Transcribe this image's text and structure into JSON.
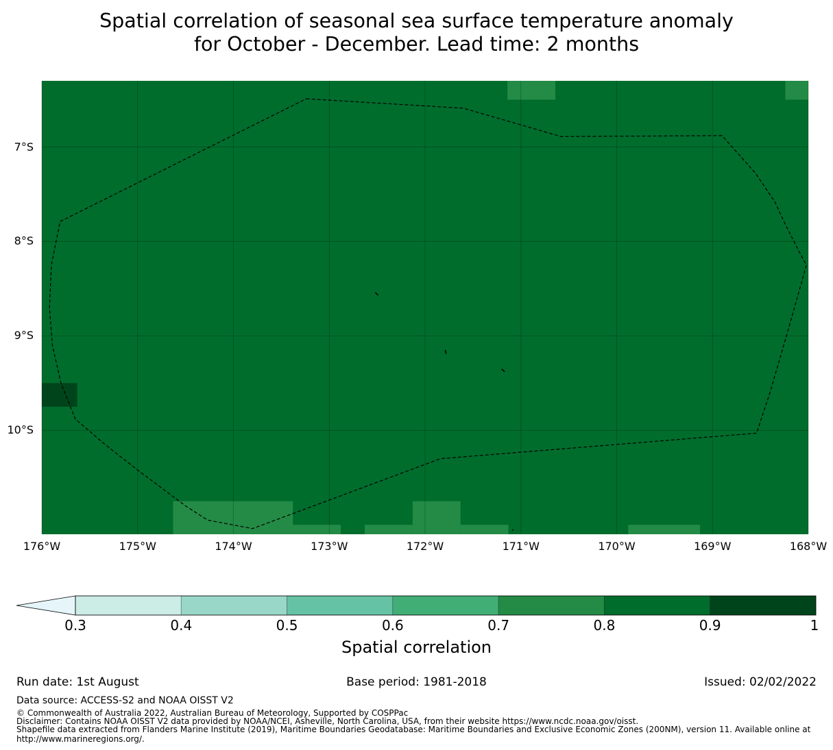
{
  "title": {
    "line1": "Spatial correlation of seasonal sea surface temperature anomaly",
    "line2": "for October - December. Lead time: 2 months"
  },
  "map": {
    "lon_range": [
      -176,
      -168
    ],
    "lat_range": [
      -11.1,
      -6.3
    ],
    "background_color": "#006d2c",
    "gridlines": true,
    "lat_ticks": [
      {
        "value": -7,
        "label": "7°S"
      },
      {
        "value": -8,
        "label": "8°S"
      },
      {
        "value": -9,
        "label": "9°S"
      },
      {
        "value": -10,
        "label": "10°S"
      }
    ],
    "lon_ticks": [
      {
        "value": -176,
        "label": "176°W"
      },
      {
        "value": -175,
        "label": "175°W"
      },
      {
        "value": -174,
        "label": "174°W"
      },
      {
        "value": -173,
        "label": "173°W"
      },
      {
        "value": -172,
        "label": "172°W"
      },
      {
        "value": -171,
        "label": "171°W"
      },
      {
        "value": -170,
        "label": "170°W"
      },
      {
        "value": -169,
        "label": "169°W"
      },
      {
        "value": -168,
        "label": "168°W"
      }
    ],
    "cells": [
      {
        "lon": [
          -171.14,
          -170.64
        ],
        "lat": [
          -6.5,
          -6.3
        ],
        "color": "#238b45",
        "category": "0.7-0.8"
      },
      {
        "lon": [
          -168.24,
          -168.0
        ],
        "lat": [
          -6.5,
          -6.3
        ],
        "color": "#238b45",
        "category": "0.7-0.8"
      },
      {
        "lon": [
          -176.0,
          -175.63
        ],
        "lat": [
          -9.75,
          -9.5
        ],
        "color": "#00441b",
        "category": "0.9-1"
      },
      {
        "lon": [
          -174.63,
          -173.38
        ],
        "lat": [
          -11.1,
          -10.75
        ],
        "color": "#238b45",
        "category": "0.7-0.8"
      },
      {
        "lon": [
          -173.38,
          -172.88
        ],
        "lat": [
          -11.1,
          -11.0
        ],
        "color": "#238b45",
        "category": "0.7-0.8"
      },
      {
        "lon": [
          -172.63,
          -172.13
        ],
        "lat": [
          -11.1,
          -11.0
        ],
        "color": "#238b45",
        "category": "0.7-0.8"
      },
      {
        "lon": [
          -172.13,
          -171.63
        ],
        "lat": [
          -11.1,
          -10.75
        ],
        "color": "#238b45",
        "category": "0.7-0.8"
      },
      {
        "lon": [
          -171.63,
          -171.13
        ],
        "lat": [
          -11.1,
          -11.0
        ],
        "color": "#238b45",
        "category": "0.7-0.8"
      },
      {
        "lon": [
          -169.88,
          -169.13
        ],
        "lat": [
          -11.1,
          -11.0
        ],
        "color": "#238b45",
        "category": "0.7-0.8"
      }
    ],
    "eez_boundary": [
      [
        -173.24,
        -6.49
      ],
      [
        -171.6,
        -6.59
      ],
      [
        -170.58,
        -6.89
      ],
      [
        -168.9,
        -6.88
      ],
      [
        -168.55,
        -7.28
      ],
      [
        -168.35,
        -7.58
      ],
      [
        -168.24,
        -7.82
      ],
      [
        -168.1,
        -8.1
      ],
      [
        -168.02,
        -8.25
      ],
      [
        -168.2,
        -8.9
      ],
      [
        -168.4,
        -9.6
      ],
      [
        -168.54,
        -10.03
      ],
      [
        -171.84,
        -10.3
      ],
      [
        -173.8,
        -11.04
      ],
      [
        -174.27,
        -10.95
      ],
      [
        -174.5,
        -10.8
      ],
      [
        -175.0,
        -10.42
      ],
      [
        -175.34,
        -10.15
      ],
      [
        -175.65,
        -9.88
      ],
      [
        -175.8,
        -9.5
      ],
      [
        -175.89,
        -9.1
      ],
      [
        -175.92,
        -8.7
      ],
      [
        -175.9,
        -8.25
      ],
      [
        -175.81,
        -7.79
      ],
      [
        -173.24,
        -6.49
      ]
    ],
    "islands": [
      [
        [
          -172.52,
          -8.54
        ],
        [
          -172.49,
          -8.57
        ]
      ],
      [
        [
          -171.79,
          -9.15
        ],
        [
          -171.78,
          -9.19
        ]
      ],
      [
        [
          -171.2,
          -9.35
        ],
        [
          -171.17,
          -9.38
        ]
      ],
      [
        [
          -171.09,
          -11.05
        ],
        [
          -171.08,
          -11.06
        ]
      ]
    ]
  },
  "colorbar": {
    "title": "Spatial correlation",
    "extend_color": "#e5f5f9",
    "bins": [
      {
        "from": 0.3,
        "to": 0.4,
        "color": "#ccece6"
      },
      {
        "from": 0.4,
        "to": 0.5,
        "color": "#99d8c9"
      },
      {
        "from": 0.5,
        "to": 0.6,
        "color": "#66c2a4"
      },
      {
        "from": 0.6,
        "to": 0.7,
        "color": "#41ae76"
      },
      {
        "from": 0.7,
        "to": 0.8,
        "color": "#238b45"
      },
      {
        "from": 0.8,
        "to": 0.9,
        "color": "#006d2c"
      },
      {
        "from": 0.9,
        "to": 1.0,
        "color": "#00441b"
      }
    ],
    "tick_labels": [
      "0.3",
      "0.4",
      "0.5",
      "0.6",
      "0.7",
      "0.8",
      "0.9",
      "1"
    ]
  },
  "footer": {
    "run_date": "Run date: 1st August",
    "base_period": "Base period: 1981-2018",
    "issued": "Issued: 02/02/2022",
    "data_source": "Data source: ACCESS-S2 and NOAA OISST V2",
    "copyright": "© Commonwealth of Australia 2022, Australian Bureau of Meteorology, Supported by COSPPac",
    "disclaimer": "Disclaimer: Contains NOAA OISST V2 data provided by NOAA/NCEI, Asheville, North Carolina, USA, from their website https://www.ncdc.noaa.gov/oisst.",
    "shapefile": "Shapefile data extracted from Flanders Marine Institute (2019), Maritime Boundaries Geodatabase: Maritime Boundaries and Exclusive Economic Zones (200NM), version 11. Available online at http://www.marineregions.org/."
  }
}
